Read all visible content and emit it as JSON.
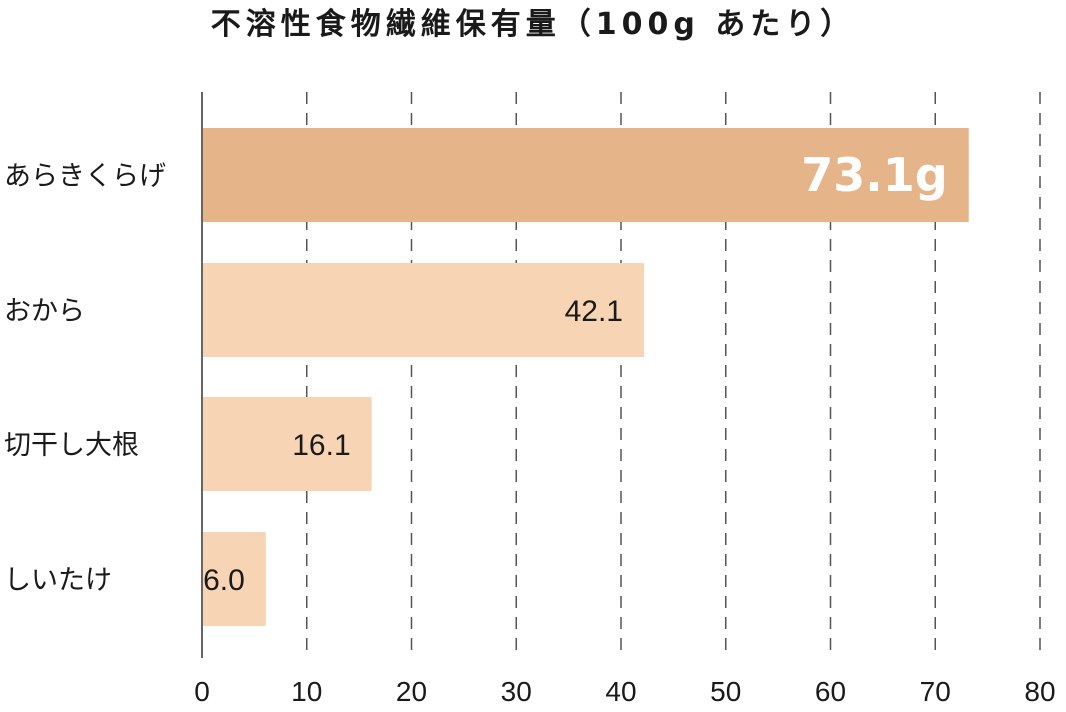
{
  "chart_data": {
    "type": "bar",
    "orientation": "horizontal",
    "title": "不溶性食物繊維保有量（100g あたり）",
    "categories": [
      "あらきくらげ",
      "おから",
      "切干し大根",
      "しいたけ"
    ],
    "values": [
      73.1,
      42.1,
      16.1,
      6.0
    ],
    "value_labels": [
      "73.1g",
      "42.1",
      "16.1",
      "6.0"
    ],
    "highlight_index": 0,
    "xlim": [
      0,
      80
    ],
    "xticks": [
      0,
      10,
      20,
      30,
      40,
      50,
      60,
      70,
      80
    ],
    "grid": "vertical dashed",
    "colors": {
      "highlight_bar": "#e6b489",
      "bar": "#f7d5b4",
      "highlight_label": "#ffffff",
      "label": "#1a1a1a"
    }
  }
}
